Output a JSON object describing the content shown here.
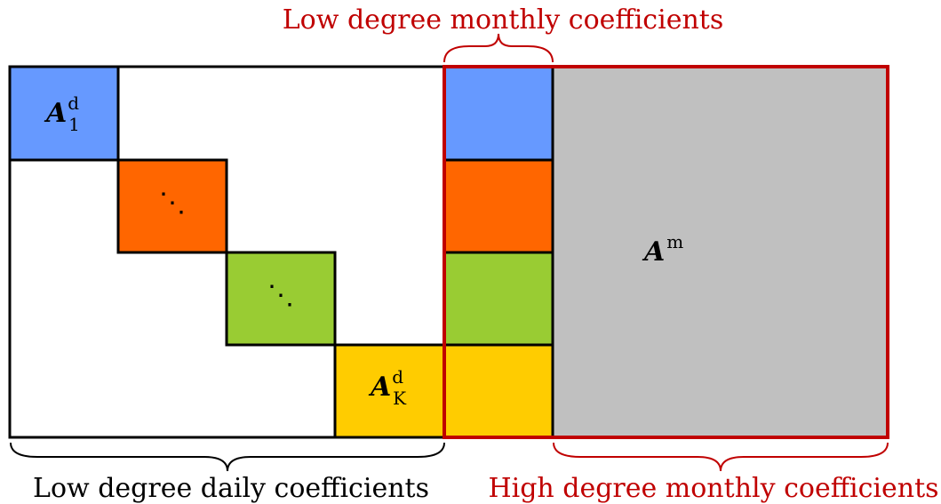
{
  "labels": {
    "top_red": "Low degree monthly coefficients",
    "bottom_left": "Low degree daily coefficients",
    "bottom_right": "High degree monthly coefficients"
  },
  "matrix": {
    "a1_base": "A",
    "a1_sup": "d",
    "a1_sub": "1",
    "ak_base": "A",
    "ak_sup": "d",
    "ak_sub": "K",
    "am_base": "A",
    "am_sup": "m",
    "ddots": "⋱"
  },
  "colors": {
    "blue": "#6699ff",
    "orange": "#ff6600",
    "green": "#99cc33",
    "yellow": "#ffcc00",
    "gray": "#c0c0c0",
    "red": "#c00000",
    "black": "#000000"
  }
}
